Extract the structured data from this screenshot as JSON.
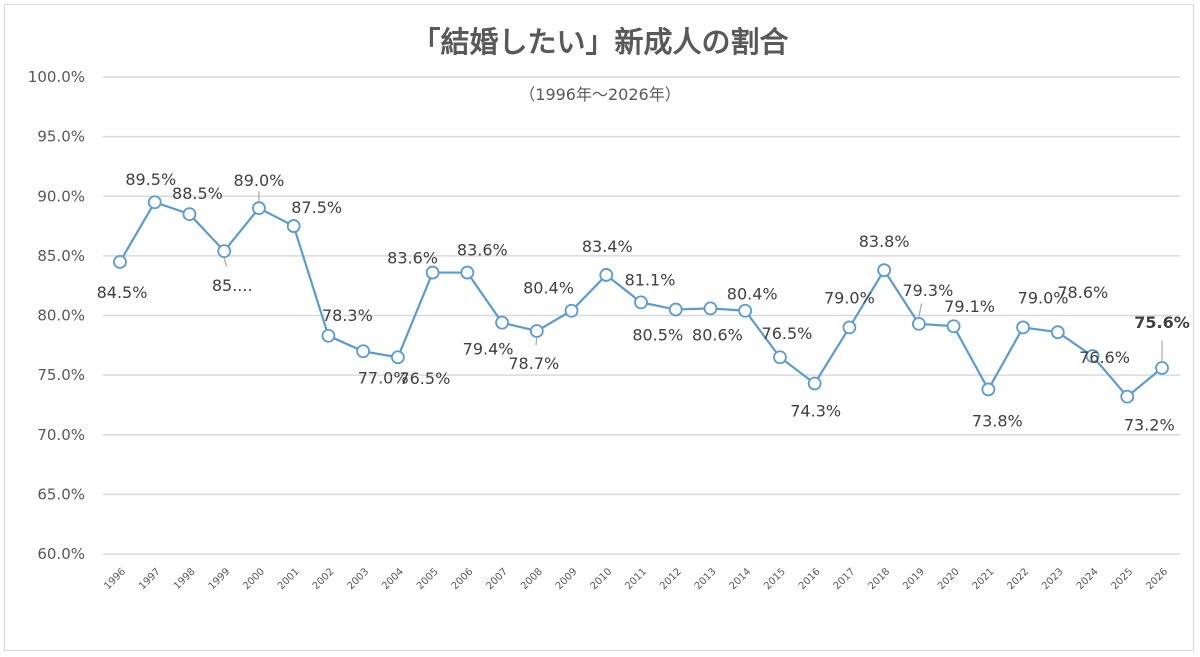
{
  "chart_data": {
    "type": "line",
    "title": "「結婚したい」新成人の割合",
    "subtitle": "（1996年～2026年）",
    "xlabel": "",
    "ylabel": "",
    "ylim": [
      60,
      100
    ],
    "ytick_step": 5,
    "ytick_labels": [
      "60.0%",
      "65.0%",
      "70.0%",
      "75.0%",
      "80.0%",
      "85.0%",
      "90.0%",
      "95.0%",
      "100.0%"
    ],
    "grid": true,
    "categories": [
      "1996",
      "1997",
      "1998",
      "1999",
      "2000",
      "2001",
      "2002",
      "2003",
      "2004",
      "2005",
      "2006",
      "2007",
      "2008",
      "2009",
      "2010",
      "2011",
      "2012",
      "2013",
      "2014",
      "2015",
      "2016",
      "2017",
      "2018",
      "2019",
      "2020",
      "2021",
      "2022",
      "2023",
      "2024",
      "2025",
      "2026"
    ],
    "series": [
      {
        "name": "結婚したい",
        "color": "#5b9bd5",
        "values": [
          84.5,
          89.5,
          88.5,
          85.4,
          89.0,
          87.5,
          78.3,
          77.0,
          76.5,
          83.6,
          83.6,
          79.4,
          78.7,
          80.4,
          83.4,
          81.1,
          80.5,
          80.6,
          80.4,
          76.5,
          74.3,
          79.0,
          83.8,
          79.3,
          79.1,
          73.8,
          79.0,
          78.6,
          76.6,
          73.2,
          75.6
        ],
        "labels": [
          "84.5%",
          "89.5%",
          "88.5%",
          "85....",
          "89.0%",
          "87.5%",
          "78.3%",
          "77.0%",
          "76.5%",
          "83.6%",
          "83.6%",
          "79.4%",
          "78.7%",
          "80.4%",
          "83.4%",
          "81.1%",
          "80.5%",
          "80.6%",
          "80.4%",
          "76.5%",
          "74.3%",
          "79.0%",
          "83.8%",
          "79.3%",
          "79.1%",
          "73.8%",
          "79.0%",
          "78.6%",
          "76.6%",
          "73.2%",
          "75.6%"
        ]
      }
    ],
    "highlighted_label": "2026"
  }
}
